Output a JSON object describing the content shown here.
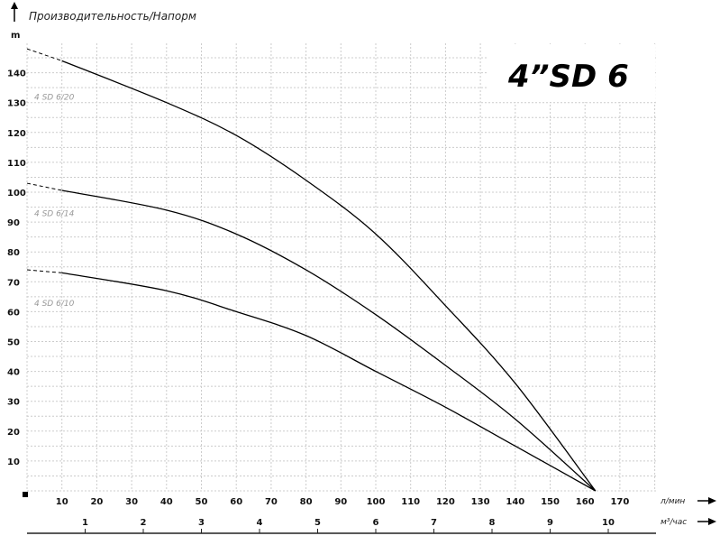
{
  "chart_data": {
    "type": "line",
    "title": "Производительность/Напорм",
    "model_label": "4”SD 6",
    "ylabel": "m",
    "xlabel": "л/мин",
    "x2label": "м³/час",
    "xlim": [
      0,
      180
    ],
    "ylim": [
      0,
      150
    ],
    "x_ticks": [
      10,
      20,
      30,
      40,
      50,
      60,
      70,
      80,
      90,
      100,
      110,
      120,
      130,
      140,
      150,
      160,
      170
    ],
    "y_ticks": [
      10,
      20,
      30,
      40,
      50,
      60,
      70,
      80,
      90,
      100,
      110,
      120,
      130,
      140
    ],
    "x2_ticks": [
      1,
      2,
      3,
      4,
      5,
      6,
      7,
      8,
      9,
      10
    ],
    "grid": true,
    "series": [
      {
        "name": "4 SD 6/20",
        "x": [
          0,
          10,
          40,
          60,
          80,
          100,
          120,
          140,
          163
        ],
        "y": [
          148,
          144,
          130,
          119,
          104,
          86,
          62,
          36,
          0
        ]
      },
      {
        "name": "4 SD 6/14",
        "x": [
          0,
          10,
          40,
          60,
          80,
          100,
          120,
          140,
          163
        ],
        "y": [
          103,
          100.6,
          94,
          86,
          74,
          59,
          42,
          24,
          0
        ]
      },
      {
        "name": "4 SD 6/10",
        "x": [
          0,
          10,
          40,
          60,
          80,
          100,
          120,
          140,
          163
        ],
        "y": [
          74,
          73,
          67,
          60,
          52,
          40,
          28,
          15,
          0
        ]
      }
    ],
    "series_label_heights": [
      131,
      92,
      62
    ]
  }
}
